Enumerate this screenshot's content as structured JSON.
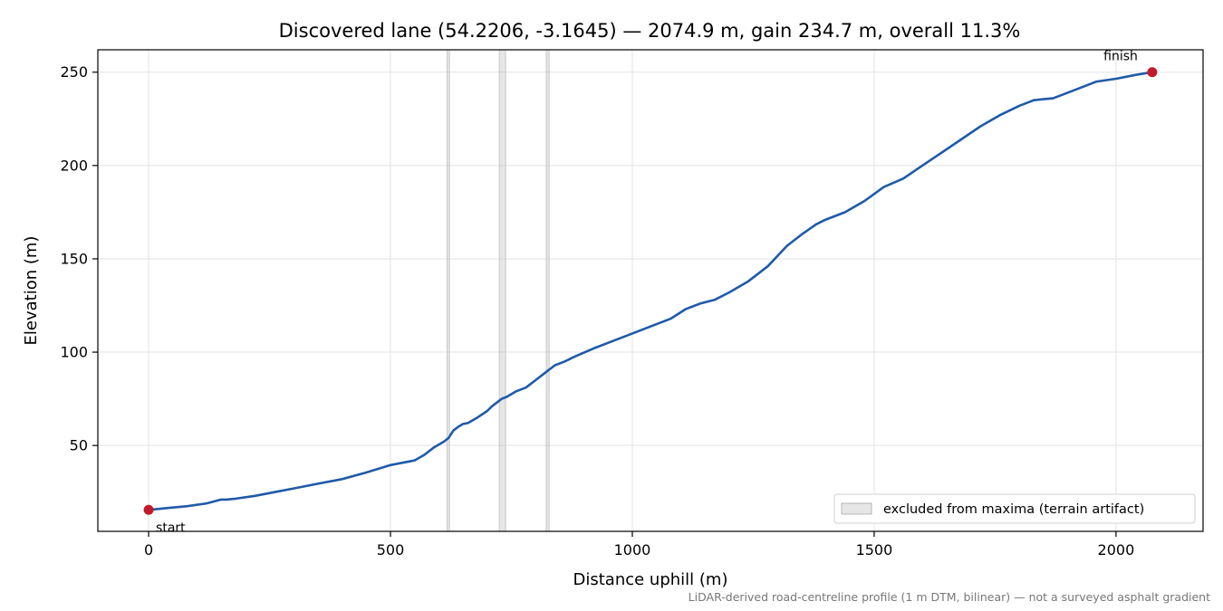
{
  "chart_data": {
    "type": "line",
    "title": "Discovered lane (54.2206, -3.1645) — 2074.9 m, gain 234.7 m, overall 11.3%",
    "xlabel": "Distance uphill (m)",
    "ylabel": "Elevation (m)",
    "xlim": [
      -105,
      2180
    ],
    "ylim": [
      4,
      262
    ],
    "xticks": [
      0,
      500,
      1000,
      1500,
      2000
    ],
    "yticks": [
      50,
      100,
      150,
      200,
      250
    ],
    "grid": true,
    "series": [
      {
        "color": "#1f5aa8",
        "x": [
          0,
          40,
          80,
          120,
          150,
          160,
          180,
          220,
          260,
          300,
          350,
          400,
          450,
          500,
          530,
          540,
          550,
          570,
          590,
          610,
          620,
          630,
          640,
          650,
          660,
          680,
          700,
          710,
          720,
          730,
          740,
          760,
          780,
          800,
          820,
          830,
          840,
          860,
          880,
          920,
          960,
          1000,
          1040,
          1080,
          1110,
          1140,
          1170,
          1200,
          1240,
          1280,
          1320,
          1350,
          1380,
          1400,
          1440,
          1480,
          1520,
          1560,
          1600,
          1640,
          1680,
          1720,
          1760,
          1800,
          1830,
          1850,
          1870,
          1900,
          1940,
          1960,
          2000,
          2040,
          2074.9
        ],
        "values": [
          15.5,
          16.5,
          17.5,
          19,
          21,
          21,
          21.5,
          23,
          25,
          27,
          29.5,
          32,
          35.5,
          39.5,
          41,
          41.5,
          42,
          45,
          49,
          52,
          54,
          58,
          60,
          61.5,
          62,
          65,
          68.5,
          71,
          73,
          75,
          76,
          79,
          81,
          85,
          89,
          91,
          93,
          95,
          97.5,
          102,
          106,
          110,
          114,
          118,
          123,
          126,
          128,
          132,
          138,
          146,
          157,
          163,
          168.5,
          171,
          175,
          181,
          188.5,
          193,
          200,
          207,
          214,
          221,
          227,
          232,
          235,
          235.5,
          236,
          239,
          243,
          245,
          246.5,
          248.5,
          250
        ]
      }
    ],
    "excluded_regions": [
      [
        617,
        622
      ],
      [
        725,
        738
      ],
      [
        822,
        828
      ]
    ],
    "points": [
      {
        "x": 0,
        "y": 15.5,
        "label": "start",
        "color": "#c21a2a"
      },
      {
        "x": 2074.9,
        "y": 250,
        "label": "finish",
        "color": "#c21a2a"
      }
    ],
    "legend": {
      "position": "lower-right",
      "entries": [
        "excluded from maxima (terrain artifact)"
      ]
    },
    "footnote": "LiDAR-derived road-centreline profile (1 m DTM, bilinear) — not a surveyed asphalt gradient",
    "colors": {
      "line": "#1f5aa8",
      "marker": "#c21a2a",
      "band": "#b8b8b8",
      "grid": "#e3e3e3"
    }
  }
}
